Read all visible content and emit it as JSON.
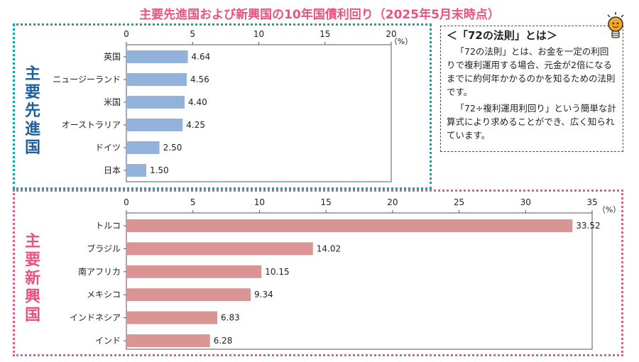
{
  "title": "主要先進国および新興国の10年国債利回り（2025年5月末時点）",
  "developed_label": [
    "主",
    "要",
    "先",
    "進",
    "国"
  ],
  "emerging_label": [
    "主",
    "要",
    "新",
    "興",
    "国"
  ],
  "note": {
    "heading": "＜「72の法則」とは＞",
    "para1": "「72の法則」とは、お金を一定の利回りで複利運用する場合、元金が2倍になるまでに約何年かかるのかを知るための法則です。",
    "para2": "「72÷複利運用利回り」という簡単な計算式により求めることができ、広く知られています。"
  },
  "colors": {
    "developed_bar": "#93b2d9",
    "emerging_bar": "#d99594",
    "title": "#e8547f",
    "developed_border": "#17a2a2",
    "emerging_border": "#e05e86"
  },
  "chart_data": [
    {
      "type": "bar",
      "orientation": "horizontal",
      "title": "",
      "unit": "（%）",
      "categories": [
        "英国",
        "ニュージーランド",
        "米国",
        "オーストラリア",
        "ドイツ",
        "日本"
      ],
      "values": [
        4.64,
        4.56,
        4.4,
        4.25,
        2.5,
        1.5
      ],
      "value_labels": [
        "4.64",
        "4.56",
        "4.40",
        "4.25",
        "2.50",
        "1.50"
      ],
      "xlim": [
        0,
        20
      ],
      "ticks": [
        0,
        5,
        10,
        15,
        20
      ],
      "grid": false
    },
    {
      "type": "bar",
      "orientation": "horizontal",
      "title": "",
      "unit": "（%）",
      "categories": [
        "トルコ",
        "ブラジル",
        "南アフリカ",
        "メキシコ",
        "インドネシア",
        "インド"
      ],
      "values": [
        33.52,
        14.02,
        10.15,
        9.34,
        6.83,
        6.28
      ],
      "value_labels": [
        "33.52",
        "14.02",
        "10.15",
        "9.34",
        "6.83",
        "6.28"
      ],
      "xlim": [
        0,
        35
      ],
      "ticks": [
        0,
        5,
        10,
        15,
        20,
        25,
        30,
        35
      ],
      "grid": false
    }
  ]
}
